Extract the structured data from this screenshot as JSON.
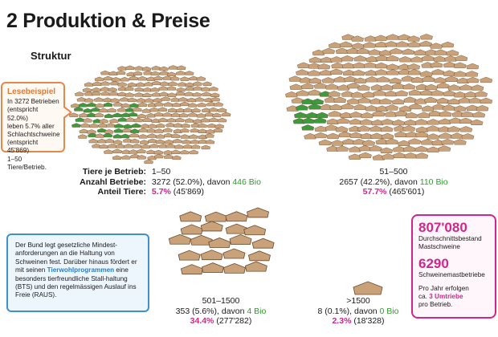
{
  "header": {
    "title": "2  Produktion & Preise",
    "subtitle": "Struktur"
  },
  "lesebeispiel": {
    "heading": "Lesebeispiel",
    "lines": [
      "In 3272 Betrieben",
      "(entspricht 52.0%)",
      "leben 5.7% aller",
      "Schlachtschweine",
      "(entspricht 45'869)",
      "1–50 Tiere/Betrieb."
    ]
  },
  "row_labels": {
    "size": "Tiere je Betrieb:",
    "farms": "Anzahl Betriebe:",
    "share": "Anteil Tiere:"
  },
  "groups": [
    {
      "size_class": "1–50",
      "farms": "3272 (52.0%), davon ",
      "bio": "446 Bio",
      "share_pct": "5.7%",
      "share_abs": " (45'869)"
    },
    {
      "size_class": "51–500",
      "farms": "2657 (42.2%), davon ",
      "bio": "110 Bio",
      "share_pct": "57.7%",
      "share_abs": " (465'601)"
    },
    {
      "size_class": "501–1500",
      "farms": "353 (5.6%), davon ",
      "bio": "4 Bio",
      "share_pct": "34.4%",
      "share_abs": " (277'282)"
    },
    {
      "size_class": ">1500",
      "farms": "8 (0.1%), davon ",
      "bio": "0 Bio",
      "share_pct": "2.3%",
      "share_abs": " (18'328)"
    }
  ],
  "info_box": {
    "text_before": "Der Bund legt gesetzliche Mindest-anforderungen an die Haltung von Schweinen fest. Darüber hinaus fördert er mit seinen ",
    "highlight": "Tierwohlprogrammen",
    "text_after": " eine besonders tierfreundliche Stall-haltung (BTS) und den regelmässigen Auslauf ins Freie (RAUS)."
  },
  "summary_box": {
    "stock_value": "807'080",
    "stock_label_1": "Durchschnittsbestand",
    "stock_label_2": "Mastschweine",
    "farms_value": "6290",
    "farms_label": "Schweinemastbetriebe",
    "note_1": "Pro Jahr erfolgen",
    "note_2_prefix": "ca. ",
    "note_2_highlight": "3 Umtriebe",
    "note_3": "pro Betrieb."
  },
  "colors": {
    "conventional": "#c9a27a",
    "bio": "#3d9a3d",
    "magenta": "#d0268c",
    "blue": "#3f8fd1",
    "orange": "#e5894a"
  },
  "icons": {
    "farm": "barn-icon"
  }
}
